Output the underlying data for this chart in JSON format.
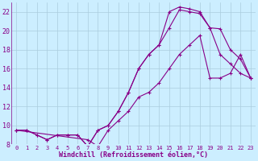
{
  "xlabel": "Windchill (Refroidissement éolien,°C)",
  "bg_color": "#cceeff",
  "grid_color": "#aaccdd",
  "line_color": "#880088",
  "xlim": [
    -0.5,
    23.5
  ],
  "ylim": [
    8,
    23
  ],
  "yticks": [
    8,
    10,
    12,
    14,
    16,
    18,
    20,
    22
  ],
  "xticks": [
    0,
    1,
    2,
    3,
    4,
    5,
    6,
    7,
    8,
    9,
    10,
    11,
    12,
    13,
    14,
    15,
    16,
    17,
    18,
    19,
    20,
    21,
    22,
    23
  ],
  "curve1_x": [
    0,
    1,
    2,
    3,
    4,
    5,
    6,
    7,
    8,
    9,
    10,
    11,
    12,
    13,
    14,
    15,
    16,
    17,
    18,
    19,
    20,
    21,
    22,
    23
  ],
  "curve1_y": [
    9.5,
    9.5,
    9.0,
    8.5,
    9.0,
    9.0,
    9.0,
    7.8,
    9.5,
    10.0,
    11.5,
    13.5,
    16.0,
    17.5,
    18.5,
    22.0,
    22.5,
    22.3,
    22.0,
    20.3,
    17.5,
    16.5,
    15.5,
    15.0
  ],
  "curve2_x": [
    0,
    1,
    2,
    3,
    4,
    5,
    6,
    7,
    8,
    9,
    10,
    11,
    12,
    13,
    14,
    15,
    16,
    17,
    18,
    19,
    20,
    21,
    22,
    23
  ],
  "curve2_y": [
    9.5,
    9.5,
    9.0,
    8.5,
    9.0,
    9.0,
    9.0,
    7.8,
    9.5,
    10.0,
    11.5,
    13.5,
    16.0,
    17.5,
    18.5,
    20.3,
    22.2,
    22.0,
    21.8,
    20.3,
    20.2,
    18.0,
    17.0,
    15.0
  ],
  "curve3_x": [
    0,
    7,
    8,
    9,
    10,
    11,
    12,
    13,
    14,
    15,
    16,
    17,
    18,
    19,
    20,
    21,
    22,
    23
  ],
  "curve3_y": [
    9.5,
    8.5,
    7.8,
    9.5,
    10.5,
    11.5,
    13.0,
    13.5,
    14.5,
    16.0,
    17.5,
    18.5,
    19.5,
    15.0,
    15.0,
    15.5,
    17.5,
    15.0
  ]
}
